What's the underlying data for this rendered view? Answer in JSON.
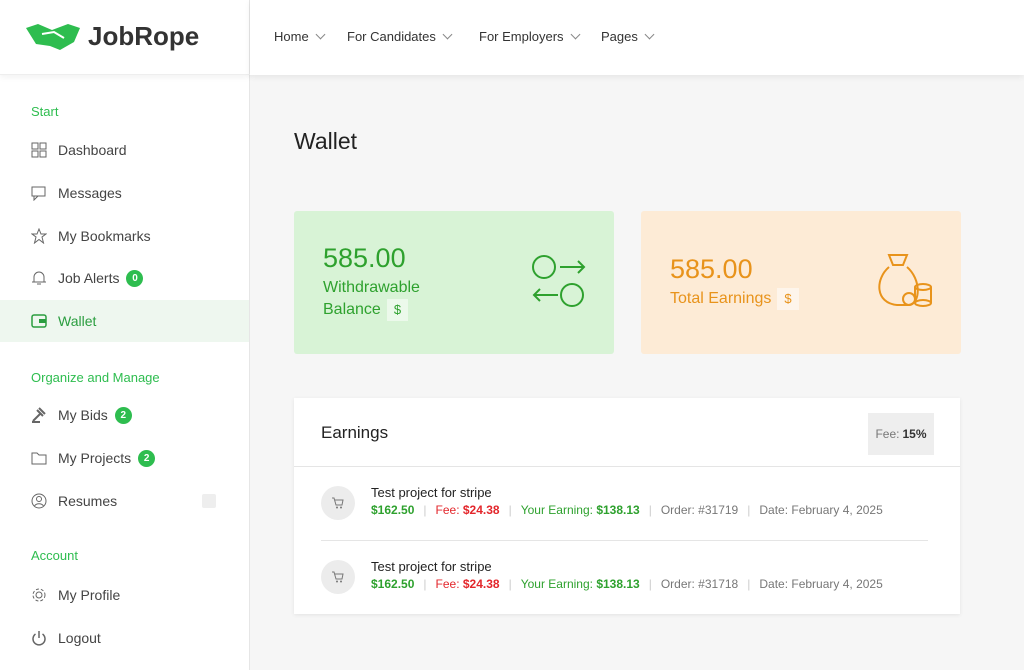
{
  "header": {
    "logo": "JobRope",
    "nav": [
      "Home",
      "For Candidates",
      "For Employers",
      "Pages"
    ]
  },
  "sidebar": {
    "sections": [
      {
        "title": "Start",
        "items": [
          {
            "label": "Dashboard"
          },
          {
            "label": "Messages"
          },
          {
            "label": "My Bookmarks"
          },
          {
            "label": "Job Alerts",
            "badge": 0
          },
          {
            "label": "Wallet"
          }
        ]
      },
      {
        "title": "Organize and Manage",
        "items": [
          {
            "label": "My Bids",
            "badge": 2
          },
          {
            "label": "My Projects",
            "badge": 2
          },
          {
            "label": "Resumes"
          }
        ]
      },
      {
        "title": "Account",
        "items": [
          {
            "label": "My Profile"
          },
          {
            "label": "Logout"
          }
        ]
      }
    ]
  },
  "main": {
    "title": "Wallet",
    "cards": [
      {
        "amount": "585.00",
        "label": "Withdrawable Balance",
        "currency": "$"
      },
      {
        "amount": "585.00",
        "label": "Total Earnings",
        "currency": "$"
      }
    ],
    "earnings": {
      "title": "Earnings",
      "fee_label": "Fee:",
      "fee": "15%",
      "rows": [
        {
          "title": "Test project for stripe",
          "amount": "$162.50",
          "fee_label": "Fee:",
          "fee": "$24.38",
          "earning_label": "Your Earning:",
          "earning": "$138.13",
          "order": "Order: #31719",
          "date": "Date: February 4, 2025"
        },
        {
          "title": "Test project for stripe",
          "amount": "$162.50",
          "fee_label": "Fee:",
          "fee": "$24.38",
          "earning_label": "Your Earning:",
          "earning": "$138.13",
          "order": "Order: #31718",
          "date": "Date: February 4, 2025"
        }
      ]
    }
  }
}
